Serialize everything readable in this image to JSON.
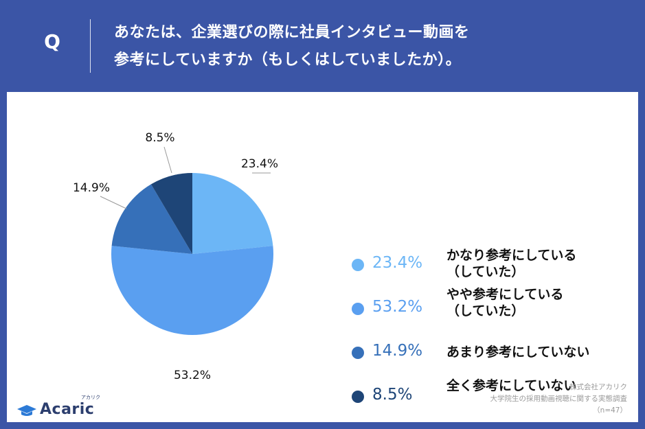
{
  "header": {
    "q_label": "Q",
    "question_line1": "あなたは、企業選びの際に社員インタビュー動画を",
    "question_line2": "参考にしていますか（もしくはしていましたか）。"
  },
  "chart_data": {
    "type": "pie",
    "slices": [
      {
        "label_line1": "かなり参考にしている",
        "label_line2": "（していた）",
        "value": 23.4,
        "value_label": "23.4%",
        "color": "#6cb6f6"
      },
      {
        "label_line1": "やや参考にしている",
        "label_line2": "（していた）",
        "value": 53.2,
        "value_label": "53.2%",
        "color": "#5a9ff0"
      },
      {
        "label_line1": "あまり参考にしていない",
        "label_line2": "",
        "value": 14.9,
        "value_label": "14.9%",
        "color": "#3670b9"
      },
      {
        "label_line1": "全く参考にしていない",
        "label_line2": "",
        "value": 8.5,
        "value_label": "8.5%",
        "color": "#1e4577"
      }
    ],
    "start_angle": "12 o'clock, clockwise"
  },
  "footer": {
    "logo_text": "Acaric",
    "logo_kana": "アカリク",
    "source_line1": "株式会社アカリク",
    "source_line2": "大学院生の採用動画視聴に関する実態調査",
    "source_line3": "（n=47）"
  },
  "colors": {
    "background": "#3b55a6",
    "panel": "#ffffff",
    "text": "#111111"
  }
}
